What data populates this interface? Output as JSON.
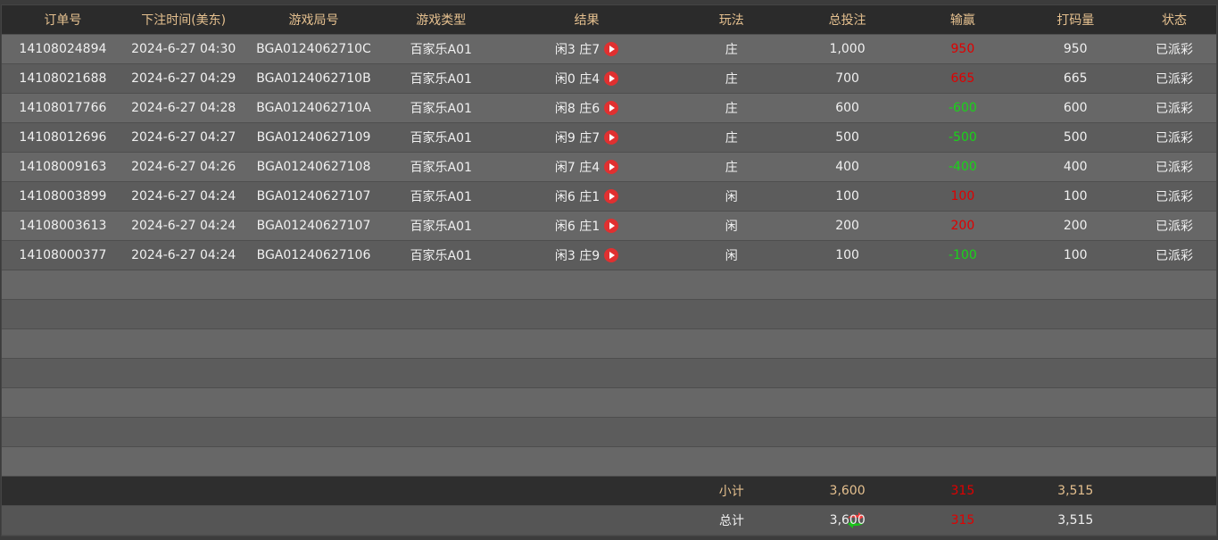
{
  "headers": [
    "订单号",
    "下注时间(美东)",
    "游戏局号",
    "游戏类型",
    "结果",
    "玩法",
    "总投注",
    "输赢",
    "打码量",
    "状态"
  ],
  "rows": [
    {
      "id": "14108024894",
      "time": "2024-6-27 04:30",
      "round": "BGA0124062710C",
      "game": "百家乐A01",
      "result": "闲3 庄7",
      "bet_on": "庄",
      "total": "1,000",
      "win": "950",
      "win_color": "red",
      "turnover": "950",
      "status": "已派彩"
    },
    {
      "id": "14108021688",
      "time": "2024-6-27 04:29",
      "round": "BGA0124062710B",
      "game": "百家乐A01",
      "result": "闲0 庄4",
      "bet_on": "庄",
      "total": "700",
      "win": "665",
      "win_color": "red",
      "turnover": "665",
      "status": "已派彩"
    },
    {
      "id": "14108017766",
      "time": "2024-6-27 04:28",
      "round": "BGA0124062710A",
      "game": "百家乐A01",
      "result": "闲8 庄6",
      "bet_on": "庄",
      "total": "600",
      "win": "-600",
      "win_color": "green",
      "turnover": "600",
      "status": "已派彩"
    },
    {
      "id": "14108012696",
      "time": "2024-6-27 04:27",
      "round": "BGA01240627109",
      "game": "百家乐A01",
      "result": "闲9 庄7",
      "bet_on": "庄",
      "total": "500",
      "win": "-500",
      "win_color": "green",
      "turnover": "500",
      "status": "已派彩"
    },
    {
      "id": "14108009163",
      "time": "2024-6-27 04:26",
      "round": "BGA01240627108",
      "game": "百家乐A01",
      "result": "闲7 庄4",
      "bet_on": "庄",
      "total": "400",
      "win": "-400",
      "win_color": "green",
      "turnover": "400",
      "status": "已派彩"
    },
    {
      "id": "14108003899",
      "time": "2024-6-27 04:24",
      "round": "BGA01240627107",
      "game": "百家乐A01",
      "result": "闲6 庄1",
      "bet_on": "闲",
      "total": "100",
      "win": "100",
      "win_color": "red",
      "turnover": "100",
      "status": "已派彩"
    },
    {
      "id": "14108003613",
      "time": "2024-6-27 04:24",
      "round": "BGA01240627107",
      "game": "百家乐A01",
      "result": "闲6 庄1",
      "bet_on": "闲",
      "total": "200",
      "win": "200",
      "win_color": "red",
      "turnover": "200",
      "status": "已派彩"
    },
    {
      "id": "14108000377",
      "time": "2024-6-27 04:24",
      "round": "BGA01240627106",
      "game": "百家乐A01",
      "result": "闲3 庄9",
      "bet_on": "闲",
      "total": "100",
      "win": "-100",
      "win_color": "green",
      "turnover": "100",
      "status": "已派彩"
    }
  ],
  "subtotal": {
    "label": "小计",
    "total": "3,600",
    "win": "315",
    "turnover": "3,515"
  },
  "grand_total": {
    "label": "总计",
    "total": "3,600",
    "win": "315",
    "turnover": "3,515",
    "icon": "refresh-icon"
  },
  "colors": {
    "header_text": "#e5c08f",
    "loss": "#19d419",
    "win": "#e00000"
  }
}
